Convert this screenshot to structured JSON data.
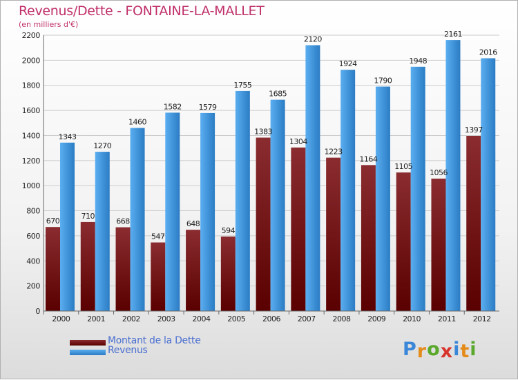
{
  "title": "Revenus/Dette - FONTAINE-LA-MALLET",
  "subtitle": "(en milliers d'€)",
  "brand": {
    "text": "Proxiti",
    "letter_colors": [
      "#3a86d8",
      "#e58b1c",
      "#5aa82c",
      "#d8342c",
      "#3a86d8",
      "#e58b1c",
      "#5aa82c"
    ]
  },
  "colors": {
    "debt_top": "#8a2c30",
    "debt_bottom": "#5a0000",
    "revenue_light": "#5aaef0",
    "revenue_dark": "#2b7cc4",
    "grid": "#cccccc",
    "axis": "#666666",
    "text": "#222222"
  },
  "chart_data": {
    "type": "bar",
    "title": "Revenus/Dette - FONTAINE-LA-MALLET",
    "subtitle": "(en milliers d'€)",
    "categories": [
      "2000",
      "2001",
      "2002",
      "2003",
      "2004",
      "2005",
      "2006",
      "2007",
      "2008",
      "2009",
      "2010",
      "2011",
      "2012"
    ],
    "series": [
      {
        "name": "Montant de la Dette",
        "values": [
          670,
          710,
          668,
          547,
          648,
          594,
          1383,
          1304,
          1223,
          1164,
          1105,
          1056,
          1397
        ]
      },
      {
        "name": "Revenus",
        "values": [
          1343,
          1270,
          1460,
          1582,
          1579,
          1755,
          1685,
          2120,
          1924,
          1790,
          1948,
          2161,
          2016
        ]
      }
    ],
    "ylim": [
      0,
      2200
    ],
    "yticks": [
      "0",
      "200",
      "400",
      "600",
      "800",
      "1000",
      "1200",
      "1400",
      "1600",
      "1800",
      "2000",
      "2200"
    ],
    "grid": true,
    "legend": "bottom-left"
  }
}
